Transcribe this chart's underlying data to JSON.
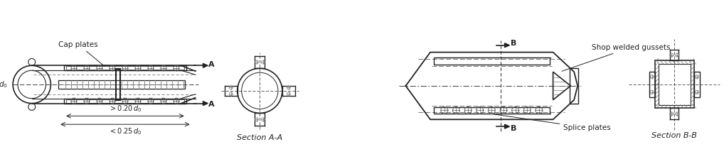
{
  "bg_color": "#ffffff",
  "line_color": "#222222",
  "mid_gray": "#777777",
  "light_gray": "#aaaaaa",
  "figsize": [
    10.18,
    2.31
  ],
  "dpi": 100,
  "labels": {
    "cap_plates": "Cap plates",
    "section_aa": "Section A-A",
    "section_bb": "Section B-B",
    "shop_welded": "Shop welded gussets",
    "splice_plates": "Splice plates",
    "A": "A",
    "B": "B"
  }
}
